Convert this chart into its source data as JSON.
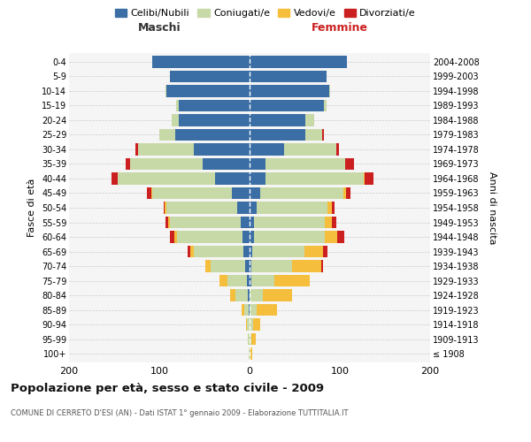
{
  "age_groups": [
    "100+",
    "95-99",
    "90-94",
    "85-89",
    "80-84",
    "75-79",
    "70-74",
    "65-69",
    "60-64",
    "55-59",
    "50-54",
    "45-49",
    "40-44",
    "35-39",
    "30-34",
    "25-29",
    "20-24",
    "15-19",
    "10-14",
    "5-9",
    "0-4"
  ],
  "birth_years": [
    "≤ 1908",
    "1909-1913",
    "1914-1918",
    "1919-1923",
    "1924-1928",
    "1929-1933",
    "1934-1938",
    "1939-1943",
    "1944-1948",
    "1949-1953",
    "1954-1958",
    "1959-1963",
    "1964-1968",
    "1969-1973",
    "1974-1978",
    "1979-1983",
    "1984-1988",
    "1989-1993",
    "1994-1998",
    "1999-2003",
    "2004-2008"
  ],
  "colors": {
    "celibi": "#3a6ea5",
    "coniugati": "#c8d9a8",
    "vedovi": "#f5be3c",
    "divorziati": "#cc2020"
  },
  "maschi": {
    "celibi": [
      0,
      0,
      0,
      1,
      2,
      3,
      5,
      7,
      8,
      10,
      14,
      20,
      38,
      52,
      62,
      82,
      78,
      78,
      92,
      88,
      108
    ],
    "coniugati": [
      1,
      2,
      3,
      5,
      14,
      22,
      38,
      55,
      72,
      78,
      78,
      88,
      108,
      80,
      62,
      18,
      8,
      3,
      1,
      0,
      0
    ],
    "vedovi": [
      0,
      0,
      1,
      3,
      6,
      8,
      6,
      4,
      3,
      2,
      2,
      1,
      0,
      0,
      0,
      0,
      0,
      0,
      0,
      0,
      0
    ],
    "divorziati": [
      0,
      0,
      0,
      0,
      0,
      0,
      0,
      3,
      5,
      3,
      1,
      5,
      7,
      5,
      2,
      0,
      0,
      0,
      0,
      0,
      0
    ]
  },
  "femmine": {
    "nubili": [
      0,
      0,
      0,
      0,
      0,
      2,
      2,
      3,
      5,
      5,
      8,
      12,
      18,
      18,
      38,
      62,
      62,
      82,
      88,
      85,
      108
    ],
    "coniugate": [
      1,
      2,
      4,
      8,
      15,
      25,
      45,
      58,
      78,
      78,
      78,
      92,
      108,
      88,
      58,
      18,
      10,
      3,
      1,
      0,
      0
    ],
    "vedove": [
      2,
      5,
      8,
      22,
      32,
      40,
      32,
      20,
      14,
      8,
      5,
      3,
      1,
      0,
      0,
      0,
      0,
      0,
      0,
      0,
      0
    ],
    "divorziate": [
      0,
      0,
      0,
      0,
      0,
      0,
      2,
      5,
      8,
      5,
      3,
      5,
      10,
      10,
      3,
      2,
      0,
      0,
      0,
      0,
      0
    ]
  },
  "title": "Popolazione per età, sesso e stato civile - 2009",
  "subtitle": "COMUNE DI CERRETO D'ESI (AN) - Dati ISTAT 1° gennaio 2009 - Elaborazione TUTTITALIA.IT",
  "xlabel_left": "Maschi",
  "xlabel_right": "Femmine",
  "ylabel_left": "Fasce di età",
  "ylabel_right": "Anni di nascita",
  "xlim": 200,
  "bg_color": "#f5f5f5",
  "grid_color": "#cccccc",
  "legend_labels": [
    "Celibi/Nubili",
    "Coniugati/e",
    "Vedovi/e",
    "Divorziati/e"
  ]
}
